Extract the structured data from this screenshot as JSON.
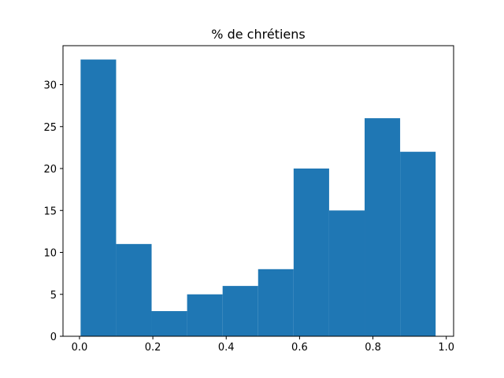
{
  "chart_data": {
    "type": "bar",
    "title": "% de chrétiens",
    "xlabel": "",
    "ylabel": "",
    "bin_edges": [
      0.003,
      0.0998,
      0.1966,
      0.2934,
      0.3902,
      0.487,
      0.5838,
      0.6806,
      0.7774,
      0.8742,
      0.971
    ],
    "values": [
      33,
      11,
      3,
      5,
      6,
      8,
      20,
      15,
      26,
      22
    ],
    "xlim": [
      -0.045,
      1.02
    ],
    "ylim": [
      0,
      34.65
    ],
    "xticks": [
      0.0,
      0.2,
      0.4,
      0.6,
      0.8,
      1.0
    ],
    "xtick_labels": [
      "0.0",
      "0.2",
      "0.4",
      "0.6",
      "0.8",
      "1.0"
    ],
    "yticks": [
      0,
      5,
      10,
      15,
      20,
      25,
      30
    ],
    "ytick_labels": [
      "0",
      "5",
      "10",
      "15",
      "20",
      "25",
      "30"
    ],
    "bar_color": "#1f77b4",
    "grid": false,
    "legend": "none"
  }
}
